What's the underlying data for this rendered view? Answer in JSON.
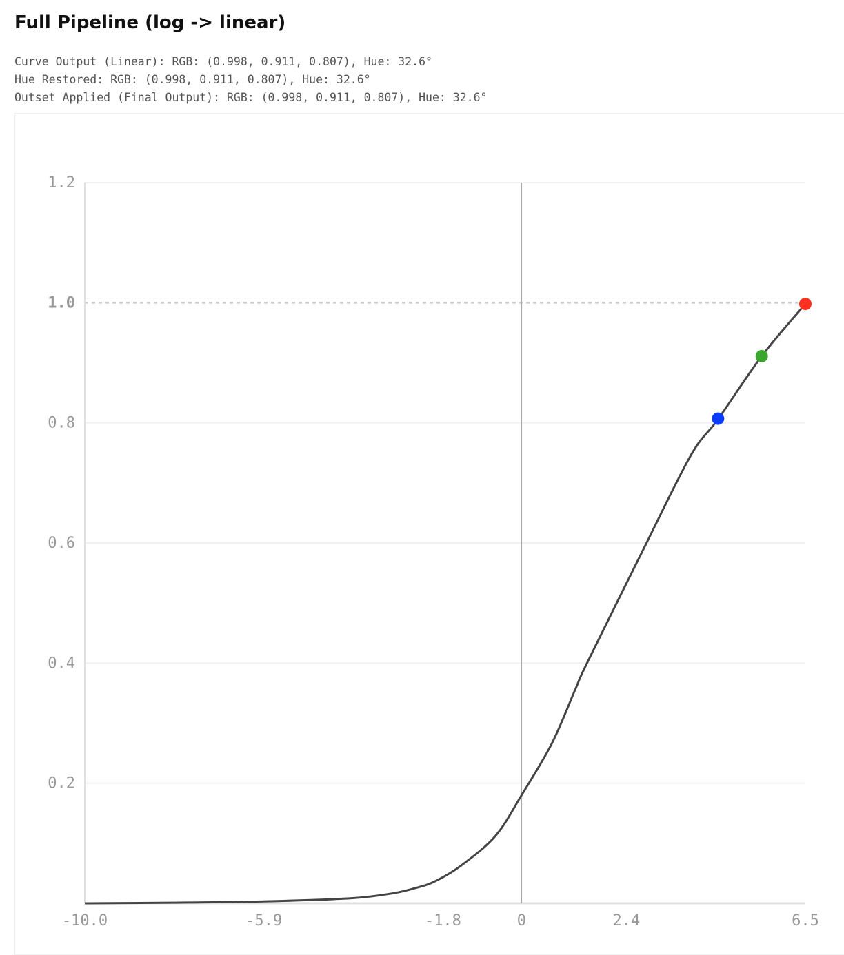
{
  "title": "Full Pipeline (log -> linear)",
  "info_lines": [
    "Curve Output (Linear): RGB: (0.998, 0.911, 0.807), Hue: 32.6°",
    "Hue Restored: RGB: (0.998, 0.911, 0.807), Hue: 32.6°",
    "Outset Applied (Final Output): RGB: (0.998, 0.911, 0.807), Hue: 32.6°"
  ],
  "chart_data": {
    "type": "line",
    "title": "",
    "xlabel": "",
    "ylabel": "",
    "xlim": [
      -10.0,
      6.5
    ],
    "ylim": [
      0,
      1.2
    ],
    "x_ticks": [
      "-10.0",
      "-5.9",
      "-1.8",
      "0",
      "2.4",
      "6.5"
    ],
    "x_tick_values": [
      -10.0,
      -5.9,
      -1.8,
      0,
      2.4,
      6.5
    ],
    "y_ticks": [
      "0.2",
      "0.4",
      "0.6",
      "0.8",
      "1.0",
      "1.2"
    ],
    "y_tick_values": [
      0.2,
      0.4,
      0.6,
      0.8,
      1.0,
      1.2
    ],
    "grid": true,
    "reference_line": {
      "y": 1.0,
      "style": "dashed",
      "color": "#cccccc"
    },
    "zero_line_x": 0,
    "series": [
      {
        "color": "#444444",
        "x": [
          -10,
          -8,
          -6,
          -4,
          -3,
          -2.45,
          -2,
          -1.4,
          -0.6,
          0,
          0.7,
          1.23,
          1.5,
          2.76,
          3.87,
          4.5,
          5.5,
          6.5
        ],
        "y": [
          0.0,
          0.001,
          0.003,
          0.008,
          0.016,
          0.025,
          0.036,
          0.062,
          0.112,
          0.18,
          0.267,
          0.356,
          0.4,
          0.585,
          0.745,
          0.806,
          0.911,
          0.998
        ]
      }
    ],
    "points": [
      {
        "x": 4.5,
        "y": 0.807,
        "color": "#0a3cff"
      },
      {
        "x": 5.5,
        "y": 0.911,
        "color": "#3aa62e"
      },
      {
        "x": 6.5,
        "y": 0.998,
        "color": "#ff3020"
      }
    ]
  }
}
